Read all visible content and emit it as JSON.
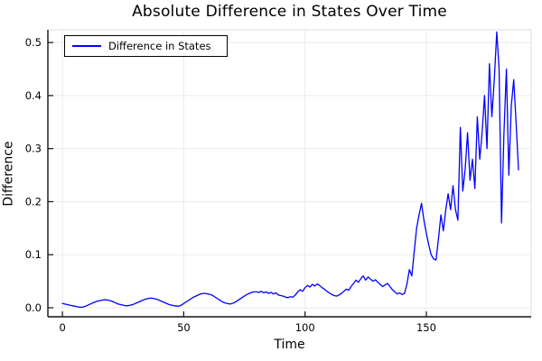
{
  "chart_data": {
    "type": "line",
    "title": "Absolute Difference in States Over Time",
    "xlabel": "Time",
    "ylabel": "Difference",
    "grid": true,
    "legend": {
      "position": "top-left",
      "entries": [
        {
          "label": "Difference in States",
          "color": "#0000ff"
        }
      ]
    },
    "xlim": [
      -6,
      193.2
    ],
    "ylim": [
      -0.017,
      0.524
    ],
    "xticks": [
      0,
      50,
      100,
      150
    ],
    "xtick_labels": [
      "0",
      "50",
      "100",
      "150"
    ],
    "yticks": [
      0.0,
      0.1,
      0.2,
      0.3,
      0.4,
      0.5
    ],
    "ytick_labels": [
      "0.0",
      "0.1",
      "0.2",
      "0.3",
      "0.4",
      "0.5"
    ],
    "colors": {
      "line": "#0000ff",
      "grid": "#ebebeb",
      "spine": "#111111",
      "box_light": "#dddddd",
      "tick_text": "#000000",
      "background": "#ffffff"
    },
    "series": [
      {
        "name": "Difference in States",
        "color": "#0000ff",
        "x_start": 0,
        "x_step": 1,
        "values": [
          0.008,
          0.007,
          0.006,
          0.005,
          0.004,
          0.003,
          0.002,
          0.001,
          0.001,
          0.002,
          0.004,
          0.006,
          0.008,
          0.01,
          0.012,
          0.013,
          0.014,
          0.015,
          0.015,
          0.014,
          0.013,
          0.011,
          0.009,
          0.007,
          0.006,
          0.005,
          0.004,
          0.004,
          0.005,
          0.006,
          0.008,
          0.01,
          0.012,
          0.014,
          0.016,
          0.017,
          0.018,
          0.018,
          0.017,
          0.016,
          0.014,
          0.012,
          0.01,
          0.008,
          0.006,
          0.005,
          0.004,
          0.003,
          0.003,
          0.005,
          0.008,
          0.011,
          0.014,
          0.017,
          0.02,
          0.022,
          0.024,
          0.026,
          0.027,
          0.027,
          0.026,
          0.025,
          0.023,
          0.02,
          0.017,
          0.014,
          0.011,
          0.009,
          0.008,
          0.007,
          0.008,
          0.01,
          0.013,
          0.016,
          0.019,
          0.022,
          0.025,
          0.027,
          0.029,
          0.03,
          0.03,
          0.029,
          0.031,
          0.028,
          0.03,
          0.027,
          0.029,
          0.026,
          0.028,
          0.024,
          0.023,
          0.022,
          0.02,
          0.019,
          0.021,
          0.02,
          0.024,
          0.03,
          0.034,
          0.031,
          0.038,
          0.042,
          0.039,
          0.044,
          0.041,
          0.045,
          0.042,
          0.038,
          0.035,
          0.031,
          0.028,
          0.025,
          0.023,
          0.022,
          0.024,
          0.027,
          0.031,
          0.035,
          0.033,
          0.04,
          0.046,
          0.052,
          0.048,
          0.055,
          0.06,
          0.052,
          0.058,
          0.054,
          0.05,
          0.053,
          0.048,
          0.044,
          0.04,
          0.043,
          0.046,
          0.04,
          0.034,
          0.03,
          0.026,
          0.028,
          0.025,
          0.027,
          0.045,
          0.072,
          0.06,
          0.105,
          0.15,
          0.175,
          0.197,
          0.165,
          0.14,
          0.118,
          0.1,
          0.092,
          0.09,
          0.13,
          0.175,
          0.145,
          0.185,
          0.215,
          0.185,
          0.23,
          0.185,
          0.165,
          0.34,
          0.22,
          0.26,
          0.33,
          0.24,
          0.28,
          0.225,
          0.36,
          0.28,
          0.33,
          0.4,
          0.3,
          0.46,
          0.36,
          0.43,
          0.52,
          0.45,
          0.16,
          0.33,
          0.45,
          0.25,
          0.38,
          0.43,
          0.35,
          0.26
        ]
      }
    ]
  }
}
